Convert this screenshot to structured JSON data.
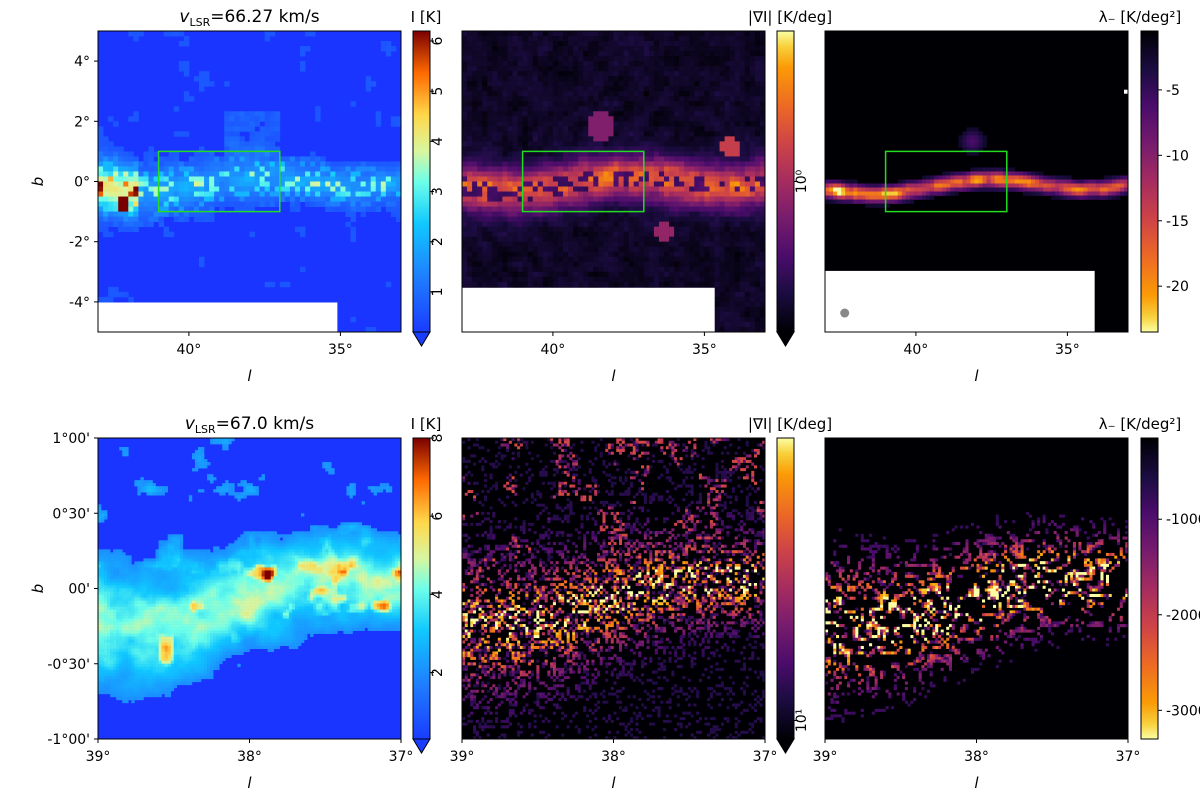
{
  "colors": {
    "background": "#ffffff",
    "cmap_jet_low": "#1a35ff",
    "cmap_jet_high": "#7a0000",
    "cmap_inferno_low": "#000004",
    "cmap_inferno_high": "#fcffa4",
    "box_outline": "#22dd22",
    "mask": "#ffffff",
    "beam_marker": "#888888"
  },
  "chart_data": [
    {
      "type": "heatmap",
      "panel": "top-left",
      "title_prefix": "v",
      "title_sub": "LSR",
      "title_value": "=66.27 km/s",
      "xlabel": "l",
      "ylabel": "b",
      "xlim": [
        43,
        33
      ],
      "ylim": [
        -5,
        5
      ],
      "xticks": [
        {
          "v": 40,
          "label": "40°"
        },
        {
          "v": 35,
          "label": "35°"
        }
      ],
      "yticks": [
        {
          "v": 4,
          "label": "4°"
        },
        {
          "v": 2,
          "label": "2°"
        },
        {
          "v": 0,
          "label": "0°"
        },
        {
          "v": -2,
          "label": "-2°"
        },
        {
          "v": -4,
          "label": "-4°"
        }
      ],
      "colormap": "jet",
      "colorbar": {
        "label": "I [K]",
        "ticks": [
          "1",
          "2",
          "3",
          "4",
          "5",
          "6"
        ],
        "tick_values": [
          1,
          2,
          3,
          4,
          5,
          6
        ],
        "range": [
          0.2,
          6.2
        ],
        "extend": "min",
        "scale": "linear"
      },
      "box": {
        "l": [
          41,
          37
        ],
        "b": [
          -1,
          1
        ]
      }
    },
    {
      "type": "heatmap",
      "panel": "top-middle",
      "xlabel": "l",
      "xlim": [
        43,
        33
      ],
      "ylim": [
        -5,
        5
      ],
      "xticks": [
        {
          "v": 40,
          "label": "40°"
        },
        {
          "v": 35,
          "label": "35°"
        }
      ],
      "colormap": "inferno",
      "colorbar": {
        "label": "|∇I| [K/deg]",
        "ticks": [
          "10⁰"
        ],
        "tick_values": [
          1
        ],
        "range": [
          0.1,
          10
        ],
        "extend": "min",
        "scale": "log"
      },
      "box": {
        "l": [
          41,
          37
        ],
        "b": [
          -1,
          1
        ]
      }
    },
    {
      "type": "heatmap",
      "panel": "top-right",
      "xlabel": "l",
      "xlim": [
        43,
        33
      ],
      "ylim": [
        -5,
        5
      ],
      "xticks": [
        {
          "v": 40,
          "label": "40°"
        },
        {
          "v": 35,
          "label": "35°"
        }
      ],
      "colormap": "inferno_r",
      "colorbar": {
        "label": "λ₋ [K/deg²]",
        "ticks": [
          "-5",
          "-10",
          "-15",
          "-20"
        ],
        "tick_values": [
          -5,
          -10,
          -15,
          -20
        ],
        "range": [
          -23.5,
          -0.5
        ],
        "extend": "neither",
        "scale": "linear"
      },
      "box": {
        "l": [
          41,
          37
        ],
        "b": [
          -1,
          1
        ]
      }
    },
    {
      "type": "heatmap",
      "panel": "bottom-left",
      "title_prefix": "v",
      "title_sub": "LSR",
      "title_value": "=67.0 km/s",
      "xlabel": "l",
      "ylabel": "b",
      "xlim": [
        39,
        37
      ],
      "ylim": [
        -1,
        1
      ],
      "xticks": [
        {
          "v": 39,
          "label": "39°"
        },
        {
          "v": 38,
          "label": "38°"
        },
        {
          "v": 37,
          "label": "37°"
        }
      ],
      "yticks": [
        {
          "v": 1,
          "label": "1°00'"
        },
        {
          "v": 0.5,
          "label": "0°30'"
        },
        {
          "v": 0,
          "label": "00'"
        },
        {
          "v": -0.5,
          "label": "-0°30'"
        },
        {
          "v": -1,
          "label": "-1°00'"
        }
      ],
      "colormap": "jet",
      "colorbar": {
        "label": "I [K]",
        "ticks": [
          "2",
          "4",
          "6",
          "8"
        ],
        "tick_values": [
          2,
          4,
          6,
          8
        ],
        "range": [
          0.3,
          8
        ],
        "extend": "min",
        "scale": "linear"
      }
    },
    {
      "type": "heatmap",
      "panel": "bottom-middle",
      "xlabel": "l",
      "xlim": [
        39,
        37
      ],
      "ylim": [
        -1,
        1
      ],
      "xticks": [
        {
          "v": 39,
          "label": "39°"
        },
        {
          "v": 38,
          "label": "38°"
        },
        {
          "v": 37,
          "label": "37°"
        }
      ],
      "colormap": "inferno",
      "colorbar": {
        "label": "|∇I| [K/deg]",
        "ticks": [
          "10¹"
        ],
        "tick_values": [
          10
        ],
        "range": [
          8,
          300
        ],
        "extend": "min",
        "scale": "log"
      }
    },
    {
      "type": "heatmap",
      "panel": "bottom-right",
      "xlabel": "l",
      "xlim": [
        39,
        37
      ],
      "ylim": [
        -1,
        1
      ],
      "xticks": [
        {
          "v": 39,
          "label": "39°"
        },
        {
          "v": 38,
          "label": "38°"
        },
        {
          "v": 37,
          "label": "37°"
        }
      ],
      "colormap": "inferno_r",
      "colorbar": {
        "label": "λ₋ [K/deg²]",
        "ticks": [
          "-1000",
          "-2000",
          "-3000"
        ],
        "tick_values": [
          -1000,
          -2000,
          -3000
        ],
        "range": [
          -3300,
          -150
        ],
        "extend": "neither",
        "scale": "linear"
      }
    }
  ]
}
